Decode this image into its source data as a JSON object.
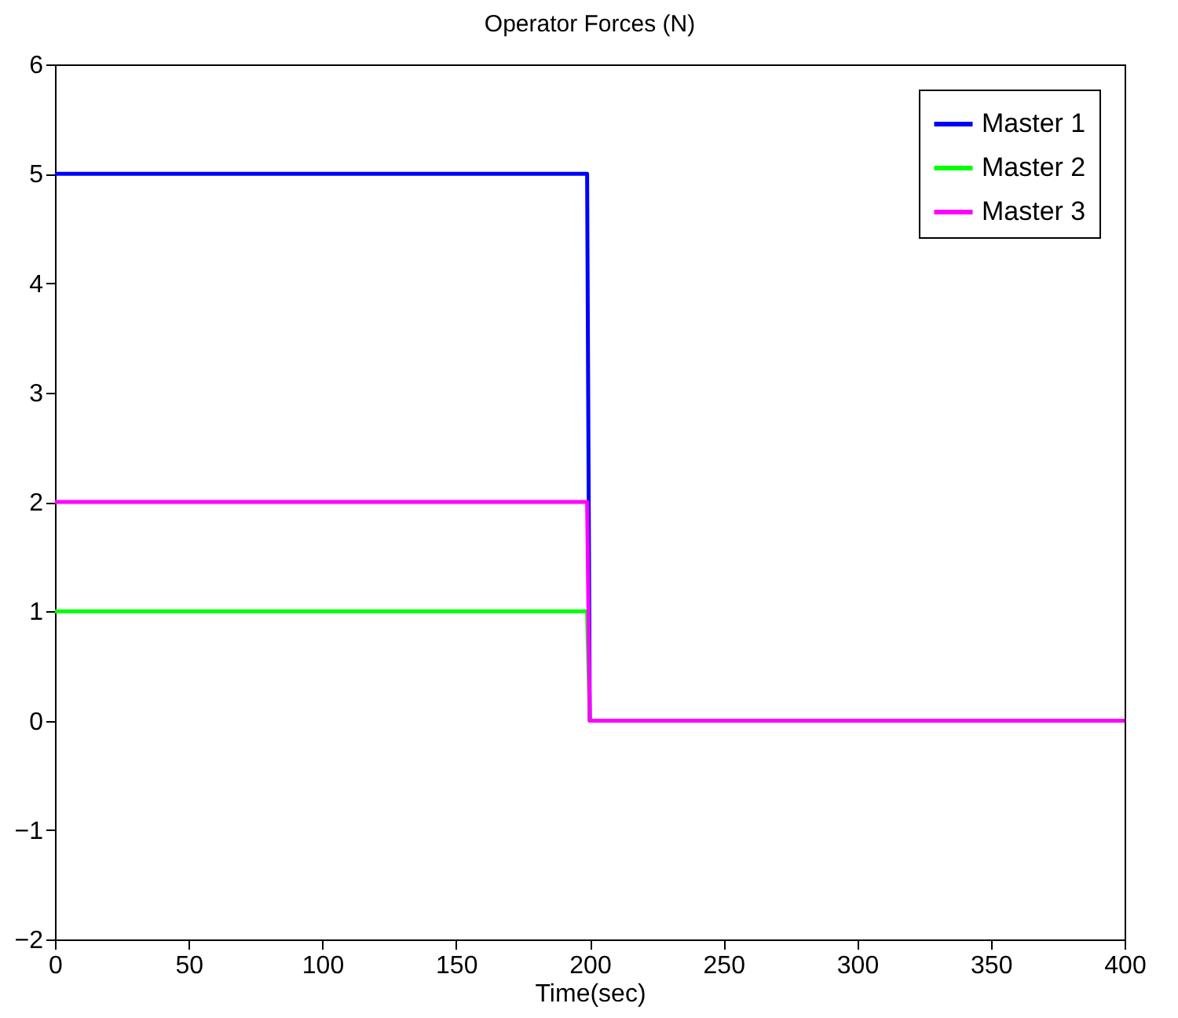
{
  "chart_data": {
    "type": "line",
    "title": "Operator Forces (N)",
    "xlabel": "Time(sec)",
    "xlim": [
      0,
      400
    ],
    "xticks": [
      0,
      50,
      100,
      150,
      200,
      250,
      300,
      350,
      400
    ],
    "ylim": [
      -2,
      6
    ],
    "yticks": [
      -2,
      -1,
      0,
      1,
      2,
      3,
      4,
      5,
      6
    ],
    "legend": "top right",
    "grid": false,
    "series": [
      {
        "name": "Master 1",
        "color": "#0000ff",
        "x": [
          0,
          199,
          200,
          400
        ],
        "values": [
          5,
          5,
          0,
          0
        ]
      },
      {
        "name": "Master 2",
        "color": "#00ff00",
        "x": [
          0,
          199,
          200,
          400
        ],
        "values": [
          1,
          1,
          0,
          0
        ]
      },
      {
        "name": "Master 3",
        "color": "#ff00ff",
        "x": [
          0,
          199,
          200,
          400
        ],
        "values": [
          2,
          2,
          0,
          0
        ]
      }
    ]
  }
}
